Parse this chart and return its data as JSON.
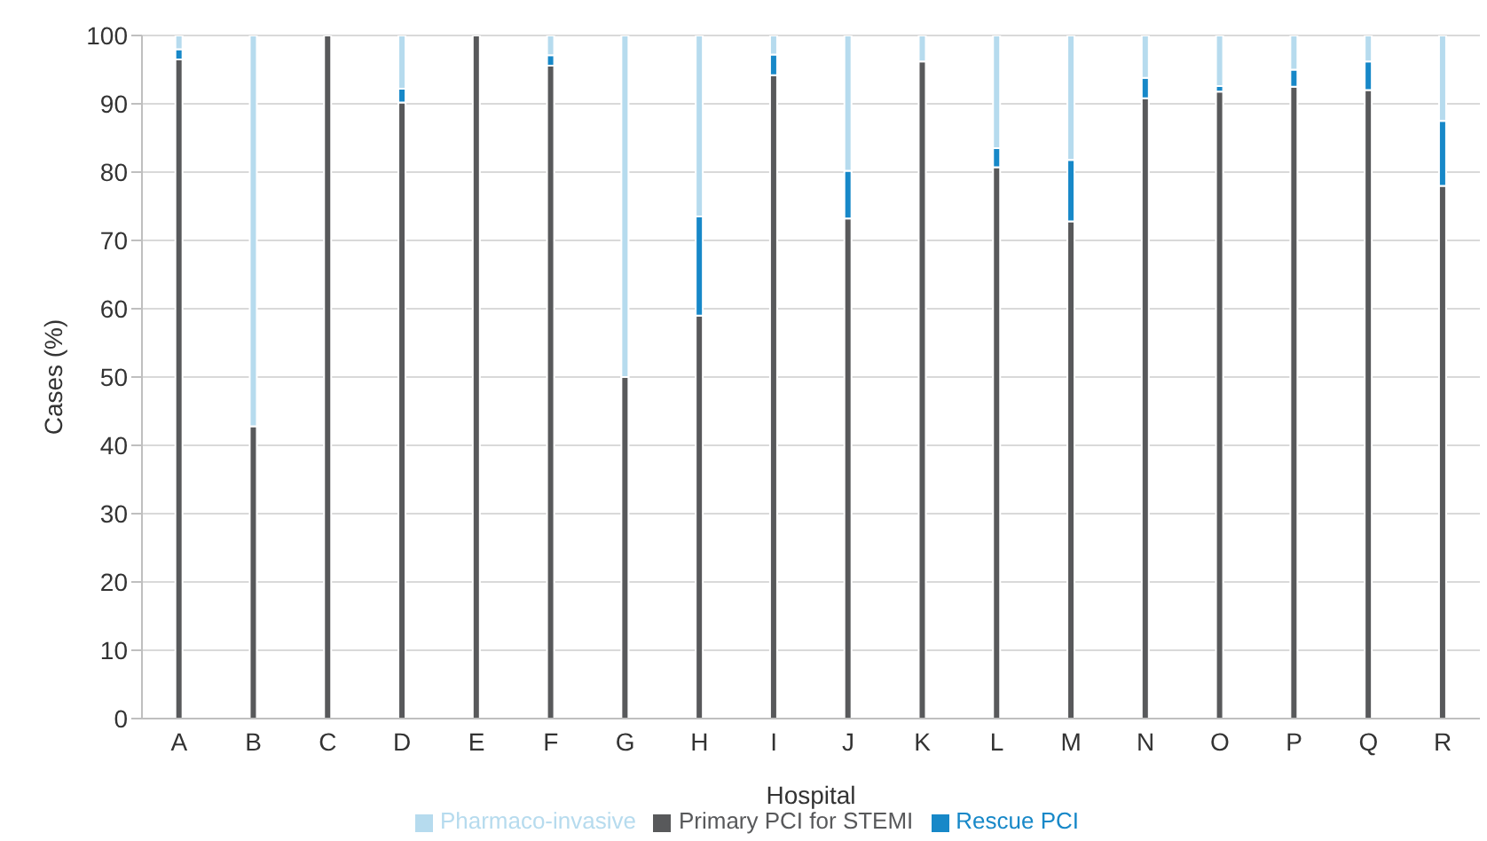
{
  "chart_data": {
    "type": "bar",
    "stacked": true,
    "xlabel": "Hospital",
    "ylabel": "Cases (%)",
    "categories": [
      "A",
      "B",
      "C",
      "D",
      "E",
      "F",
      "G",
      "H",
      "I",
      "J",
      "K",
      "L",
      "M",
      "N",
      "O",
      "P",
      "Q",
      "R"
    ],
    "series": [
      {
        "name": "Primary PCI for STEMI",
        "color": "#58595b",
        "values": [
          96.5,
          42.8,
          100,
          90.2,
          100,
          95.6,
          50,
          59,
          94.2,
          73.2,
          96.2,
          80.7,
          72.8,
          90.8,
          91.8,
          92.5,
          92,
          78
        ]
      },
      {
        "name": "Rescue PCI",
        "color": "#1788c8",
        "values": [
          1.5,
          0,
          0,
          2,
          0,
          1.5,
          0,
          14.5,
          3,
          7,
          0,
          2.8,
          9,
          3,
          0.8,
          2.5,
          4.2,
          9.5
        ]
      },
      {
        "name": "Pharmaco-invasive",
        "color": "#b6dbee",
        "values": [
          2,
          57.2,
          0,
          7.8,
          0,
          2.9,
          50,
          26.5,
          2.8,
          19.8,
          3.8,
          16.5,
          18.2,
          6.2,
          7.4,
          5,
          3.8,
          12.5
        ]
      }
    ],
    "ylim": [
      0,
      100
    ],
    "yticks": [
      0,
      10,
      20,
      30,
      40,
      50,
      60,
      70,
      80,
      90,
      100
    ],
    "grid": "y",
    "legend": "bottom"
  }
}
